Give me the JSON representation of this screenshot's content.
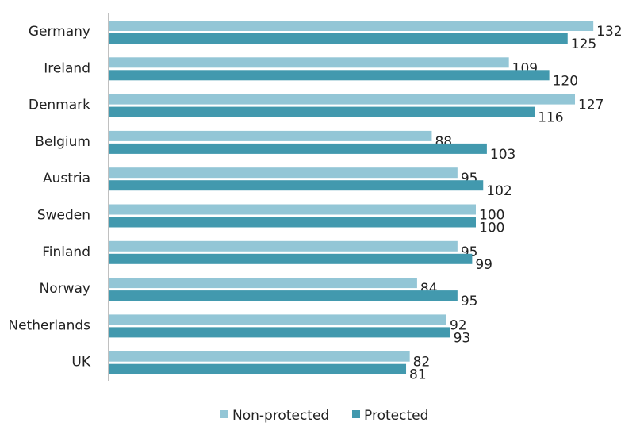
{
  "chart_data": {
    "type": "bar",
    "orientation": "horizontal",
    "categories": [
      "Germany",
      "Ireland",
      "Denmark",
      "Belgium",
      "Austria",
      "Sweden",
      "Finland",
      "Norway",
      "Netherlands",
      "UK"
    ],
    "series": [
      {
        "name": "Non-protected",
        "color": "#93C6D6",
        "values": [
          132,
          109,
          127,
          88,
          95,
          100,
          95,
          84,
          92,
          82
        ]
      },
      {
        "name": "Protected",
        "color": "#4299AE",
        "values": [
          125,
          120,
          116,
          103,
          102,
          100,
          99,
          95,
          93,
          81
        ]
      }
    ],
    "title": "",
    "xlabel": "",
    "ylabel": "",
    "xlim": [
      0,
      140
    ],
    "grid": false,
    "legend": "bottom"
  }
}
